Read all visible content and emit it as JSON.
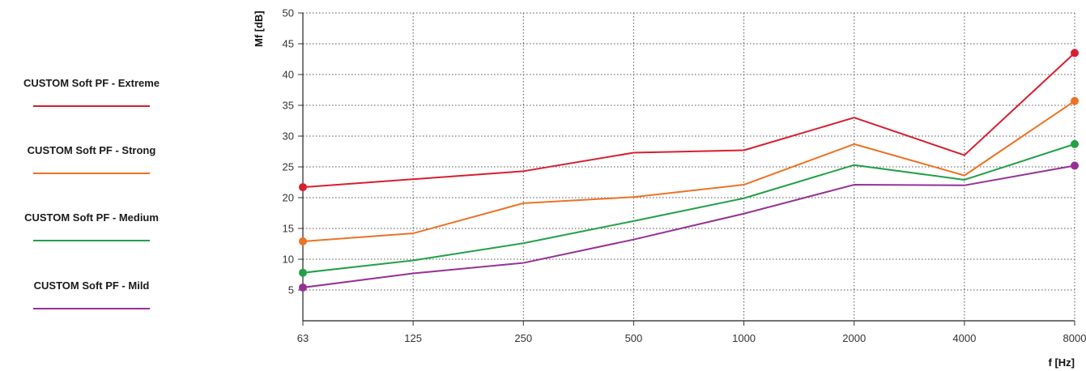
{
  "chart_data": {
    "type": "line",
    "xlabel": "f [Hz]",
    "ylabel": "Mf [dB]",
    "categories": [
      "63",
      "125",
      "250",
      "500",
      "1000",
      "2000",
      "4000",
      "8000"
    ],
    "yticks": [
      5,
      10,
      15,
      20,
      25,
      30,
      35,
      40,
      45,
      50
    ],
    "ylim": [
      0,
      50
    ],
    "grid": true,
    "legend_position": "left",
    "series": [
      {
        "name": "CUSTOM Soft PF - Extreme",
        "color": "#d81e2f",
        "values": [
          21.7,
          23.0,
          24.3,
          27.3,
          27.7,
          33.0,
          26.9,
          43.5
        ]
      },
      {
        "name": "CUSTOM Soft PF - Strong",
        "color": "#ee7223",
        "values": [
          12.9,
          14.2,
          19.1,
          20.1,
          22.1,
          28.7,
          23.6,
          35.7
        ]
      },
      {
        "name": "CUSTOM Soft PF - Medium",
        "color": "#22a047",
        "values": [
          7.8,
          9.8,
          12.6,
          16.2,
          19.9,
          25.3,
          22.9,
          28.7
        ]
      },
      {
        "name": "CUSTOM Soft PF - Mild",
        "color": "#953194",
        "values": [
          5.4,
          7.7,
          9.4,
          13.2,
          17.4,
          22.1,
          22.0,
          25.2
        ]
      }
    ]
  }
}
